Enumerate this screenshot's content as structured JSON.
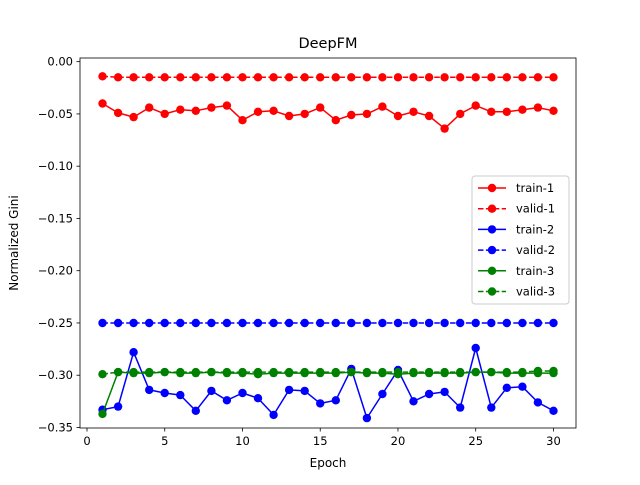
{
  "chart_data": {
    "type": "line",
    "title": "DeepFM",
    "xlabel": "Epoch",
    "ylabel": "Normalized Gini",
    "xlim": [
      -0.45,
      31.45
    ],
    "ylim": [
      -0.3505,
      0.0035
    ],
    "xticks": [
      0,
      5,
      10,
      15,
      20,
      25,
      30
    ],
    "xtick_labels": [
      "0",
      "5",
      "10",
      "15",
      "20",
      "25",
      "30"
    ],
    "yticks": [
      0.0,
      -0.05,
      -0.1,
      -0.15,
      -0.2,
      -0.25,
      -0.3,
      -0.35
    ],
    "ytick_labels": [
      "0.00",
      "−0.05",
      "−0.10",
      "−0.15",
      "−0.20",
      "−0.25",
      "−0.30",
      "−0.35"
    ],
    "grid": false,
    "legend_position": "center-right",
    "x": [
      1,
      2,
      3,
      4,
      5,
      6,
      7,
      8,
      9,
      10,
      11,
      12,
      13,
      14,
      15,
      16,
      17,
      18,
      19,
      20,
      21,
      22,
      23,
      24,
      25,
      26,
      27,
      28,
      29,
      30
    ],
    "series": [
      {
        "name": "train-1",
        "color": "#ff0000",
        "linestyle": "solid",
        "marker": "circle",
        "values": [
          -0.04,
          -0.049,
          -0.053,
          -0.044,
          -0.05,
          -0.046,
          -0.047,
          -0.044,
          -0.042,
          -0.056,
          -0.048,
          -0.047,
          -0.052,
          -0.05,
          -0.044,
          -0.056,
          -0.051,
          -0.05,
          -0.043,
          -0.052,
          -0.048,
          -0.052,
          -0.064,
          -0.05,
          -0.042,
          -0.048,
          -0.048,
          -0.046,
          -0.044,
          -0.047
        ]
      },
      {
        "name": "valid-1",
        "color": "#ff0000",
        "linestyle": "dashed",
        "marker": "circle",
        "values": [
          -0.014,
          -0.015,
          -0.015,
          -0.015,
          -0.015,
          -0.015,
          -0.015,
          -0.015,
          -0.015,
          -0.015,
          -0.015,
          -0.015,
          -0.015,
          -0.015,
          -0.015,
          -0.015,
          -0.015,
          -0.015,
          -0.015,
          -0.015,
          -0.015,
          -0.015,
          -0.015,
          -0.015,
          -0.015,
          -0.015,
          -0.015,
          -0.015,
          -0.015,
          -0.015
        ]
      },
      {
        "name": "train-2",
        "color": "#0000ff",
        "linestyle": "solid",
        "marker": "circle",
        "values": [
          -0.333,
          -0.33,
          -0.278,
          -0.314,
          -0.317,
          -0.319,
          -0.334,
          -0.315,
          -0.324,
          -0.317,
          -0.322,
          -0.338,
          -0.314,
          -0.315,
          -0.327,
          -0.324,
          -0.294,
          -0.341,
          -0.318,
          -0.295,
          -0.325,
          -0.318,
          -0.316,
          -0.331,
          -0.274,
          -0.331,
          -0.312,
          -0.311,
          -0.326,
          -0.334
        ]
      },
      {
        "name": "valid-2",
        "color": "#0000ff",
        "linestyle": "dashed",
        "marker": "circle",
        "values": [
          -0.25,
          -0.25,
          -0.25,
          -0.25,
          -0.25,
          -0.25,
          -0.25,
          -0.25,
          -0.25,
          -0.25,
          -0.25,
          -0.25,
          -0.25,
          -0.25,
          -0.25,
          -0.25,
          -0.25,
          -0.25,
          -0.25,
          -0.25,
          -0.25,
          -0.25,
          -0.25,
          -0.25,
          -0.25,
          -0.25,
          -0.25,
          -0.25,
          -0.25,
          -0.25
        ]
      },
      {
        "name": "train-3",
        "color": "#008000",
        "linestyle": "solid",
        "marker": "circle",
        "values": [
          -0.337,
          -0.297,
          -0.298,
          -0.298,
          -0.297,
          -0.298,
          -0.298,
          -0.297,
          -0.298,
          -0.298,
          -0.299,
          -0.298,
          -0.298,
          -0.298,
          -0.298,
          -0.298,
          -0.297,
          -0.298,
          -0.298,
          -0.299,
          -0.298,
          -0.298,
          -0.298,
          -0.298,
          -0.297,
          -0.297,
          -0.298,
          -0.298,
          -0.298,
          -0.298
        ]
      },
      {
        "name": "valid-3",
        "color": "#008000",
        "linestyle": "dashed",
        "marker": "circle",
        "values": [
          -0.299,
          -0.297,
          -0.297,
          -0.297,
          -0.297,
          -0.297,
          -0.297,
          -0.297,
          -0.297,
          -0.297,
          -0.297,
          -0.297,
          -0.297,
          -0.297,
          -0.297,
          -0.297,
          -0.297,
          -0.297,
          -0.297,
          -0.297,
          -0.297,
          -0.297,
          -0.297,
          -0.297,
          -0.297,
          -0.297,
          -0.297,
          -0.297,
          -0.296,
          -0.296
        ]
      }
    ]
  }
}
